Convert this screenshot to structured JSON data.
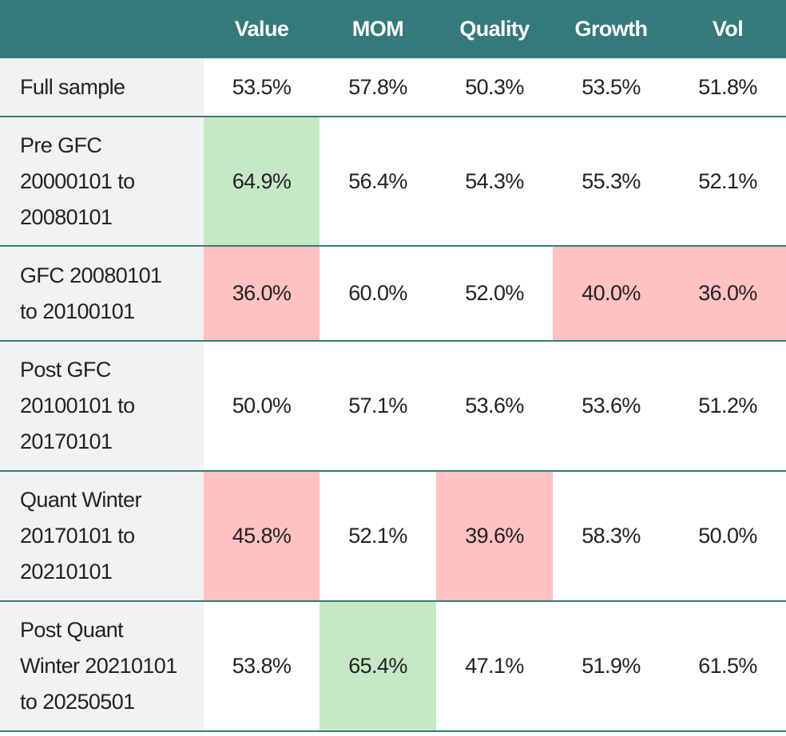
{
  "table": {
    "header": [
      "Value",
      "MOM",
      "Quality",
      "Growth",
      "Vol"
    ],
    "rows": [
      {
        "label": "Full sample",
        "cells": [
          "53.5%",
          "57.8%",
          "50.3%",
          "53.5%",
          "51.8%"
        ],
        "colors": [
          null,
          null,
          null,
          null,
          null
        ]
      },
      {
        "label": "Pre GFC 20000101 to 20080101",
        "cells": [
          "64.9%",
          "56.4%",
          "54.3%",
          "55.3%",
          "52.1%"
        ],
        "colors": [
          "#c6e9c5",
          null,
          null,
          null,
          null
        ]
      },
      {
        "label": "GFC 20080101 to 20100101",
        "cells": [
          "36.0%",
          "60.0%",
          "52.0%",
          "40.0%",
          "36.0%"
        ],
        "colors": [
          "#ffc1c1",
          null,
          null,
          "#ffc1c1",
          "#ffc1c1"
        ]
      },
      {
        "label": "Post GFC 20100101 to 20170101",
        "cells": [
          "50.0%",
          "57.1%",
          "53.6%",
          "53.6%",
          "51.2%"
        ],
        "colors": [
          null,
          null,
          null,
          null,
          null
        ]
      },
      {
        "label": "Quant Winter 20170101 to 20210101",
        "cells": [
          "45.8%",
          "52.1%",
          "39.6%",
          "58.3%",
          "50.0%"
        ],
        "colors": [
          "#ffc1c1",
          null,
          "#ffc1c1",
          null,
          null
        ]
      },
      {
        "label": "Post Quant Winter 20210101 to 20250501",
        "cells": [
          "53.8%",
          "65.4%",
          "47.1%",
          "51.9%",
          "61.5%"
        ],
        "colors": [
          null,
          "#c6e9c5",
          null,
          null,
          null
        ]
      }
    ]
  }
}
